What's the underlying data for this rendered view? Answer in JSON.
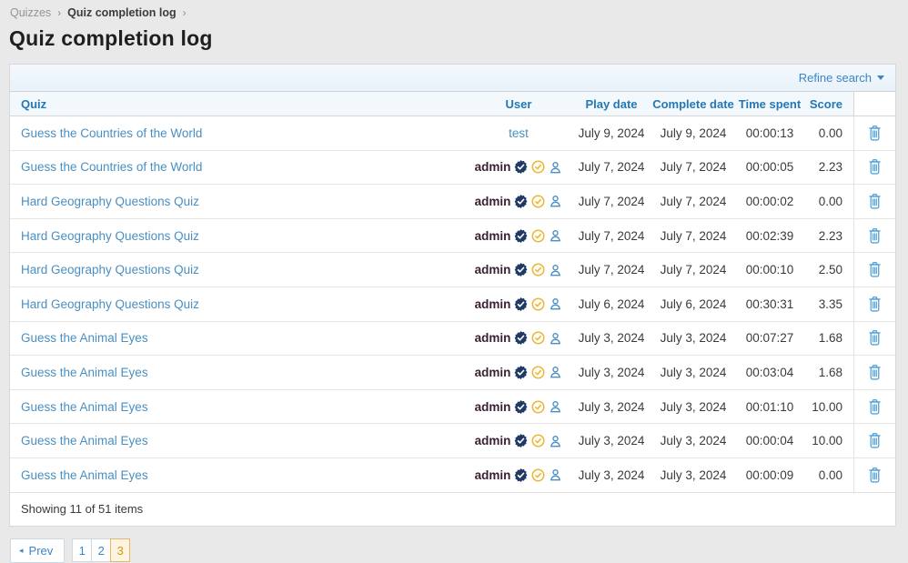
{
  "breadcrumb": {
    "items": [
      "Quizzes",
      "Quiz completion log"
    ],
    "separator": "›"
  },
  "page_title": "Quiz completion log",
  "toolbar": {
    "refine_search_label": "Refine search"
  },
  "table": {
    "columns": [
      "Quiz",
      "User",
      "Play date",
      "Complete date",
      "Time spent",
      "Score"
    ],
    "rows": [
      {
        "quiz": "Guess the Countries of the World",
        "user": "test",
        "badges": false,
        "play_date": "July 9, 2024",
        "complete_date": "July 9, 2024",
        "time_spent": "00:00:13",
        "score": "0.00"
      },
      {
        "quiz": "Guess the Countries of the World",
        "user": "admin",
        "badges": true,
        "play_date": "July 7, 2024",
        "complete_date": "July 7, 2024",
        "time_spent": "00:00:05",
        "score": "2.23"
      },
      {
        "quiz": "Hard Geography Questions Quiz",
        "user": "admin",
        "badges": true,
        "play_date": "July 7, 2024",
        "complete_date": "July 7, 2024",
        "time_spent": "00:00:02",
        "score": "0.00"
      },
      {
        "quiz": "Hard Geography Questions Quiz",
        "user": "admin",
        "badges": true,
        "play_date": "July 7, 2024",
        "complete_date": "July 7, 2024",
        "time_spent": "00:02:39",
        "score": "2.23"
      },
      {
        "quiz": "Hard Geography Questions Quiz",
        "user": "admin",
        "badges": true,
        "play_date": "July 7, 2024",
        "complete_date": "July 7, 2024",
        "time_spent": "00:00:10",
        "score": "2.50"
      },
      {
        "quiz": "Hard Geography Questions Quiz",
        "user": "admin",
        "badges": true,
        "play_date": "July 6, 2024",
        "complete_date": "July 6, 2024",
        "time_spent": "00:30:31",
        "score": "3.35"
      },
      {
        "quiz": "Guess the Animal Eyes",
        "user": "admin",
        "badges": true,
        "play_date": "July 3, 2024",
        "complete_date": "July 3, 2024",
        "time_spent": "00:07:27",
        "score": "1.68"
      },
      {
        "quiz": "Guess the Animal Eyes",
        "user": "admin",
        "badges": true,
        "play_date": "July 3, 2024",
        "complete_date": "July 3, 2024",
        "time_spent": "00:03:04",
        "score": "1.68"
      },
      {
        "quiz": "Guess the Animal Eyes",
        "user": "admin",
        "badges": true,
        "play_date": "July 3, 2024",
        "complete_date": "July 3, 2024",
        "time_spent": "00:01:10",
        "score": "10.00"
      },
      {
        "quiz": "Guess the Animal Eyes",
        "user": "admin",
        "badges": true,
        "play_date": "July 3, 2024",
        "complete_date": "July 3, 2024",
        "time_spent": "00:00:04",
        "score": "10.00"
      },
      {
        "quiz": "Guess the Animal Eyes",
        "user": "admin",
        "badges": true,
        "play_date": "July 3, 2024",
        "complete_date": "July 3, 2024",
        "time_spent": "00:00:09",
        "score": "0.00"
      }
    ]
  },
  "footer": {
    "summary": "Showing 11 of 51 items"
  },
  "pagination": {
    "prev_label": "Prev",
    "pages": [
      "1",
      "2",
      "3"
    ],
    "active_page": "3"
  },
  "colors": {
    "accent_blue": "#3d85c6",
    "header_text_blue": "#2478b5",
    "link_blue": "#4a8fc2",
    "admin_name": "#3a2133",
    "verified_badge_navy": "#203a64",
    "gold_badge": "#e9b63a",
    "trash_icon_blue": "#56a4da",
    "active_page_orange": "#d9950f",
    "active_page_bg": "#fcf3e0",
    "page_background": "#e9e9e9"
  }
}
